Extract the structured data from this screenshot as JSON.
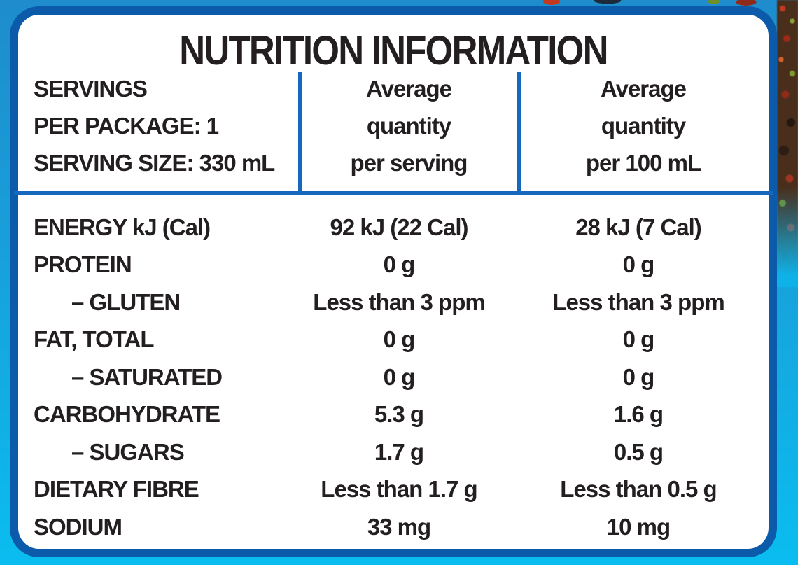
{
  "title": "NUTRITION INFORMATION",
  "header": {
    "servings": [
      "SERVINGS",
      "PER PACKAGE: 1",
      "SERVING SIZE: 330 mL"
    ],
    "per_serving_col": [
      "Average",
      "quantity",
      "per serving"
    ],
    "per_100ml_col": [
      "Average",
      "quantity",
      "per 100 mL"
    ]
  },
  "rows": [
    {
      "label": "ENERGY kJ (Cal)",
      "per_serving": "92 kJ (22 Cal)",
      "per_100ml": "28 kJ (7 Cal)"
    },
    {
      "label": "PROTEIN",
      "per_serving": "0 g",
      "per_100ml": "0 g"
    },
    {
      "label": "– GLUTEN",
      "per_serving": "Less than 3 ppm",
      "per_100ml": "Less than 3 ppm"
    },
    {
      "label": "FAT, TOTAL",
      "per_serving": "0 g",
      "per_100ml": "0 g"
    },
    {
      "label": "– SATURATED",
      "per_serving": "0 g",
      "per_100ml": "0 g"
    },
    {
      "label": "CARBOHYDRATE",
      "per_serving": "5.3 g",
      "per_100ml": "1.6 g"
    },
    {
      "label": "– SUGARS",
      "per_serving": "1.7 g",
      "per_100ml": "0.5 g"
    },
    {
      "label": "DIETARY FIBRE",
      "per_serving": "Less than 1.7 g",
      "per_100ml": "Less than 0.5 g"
    },
    {
      "label": "SODIUM",
      "per_serving": "33 mg",
      "per_100ml": "10 mg"
    }
  ],
  "colors": {
    "background_top": "#1e8ccd",
    "background_bottom": "#0abdf0",
    "panel_background": "#ffffff",
    "panel_border": "#0b5baa",
    "rule_blue": "#1568bd",
    "text": "#231f20"
  }
}
